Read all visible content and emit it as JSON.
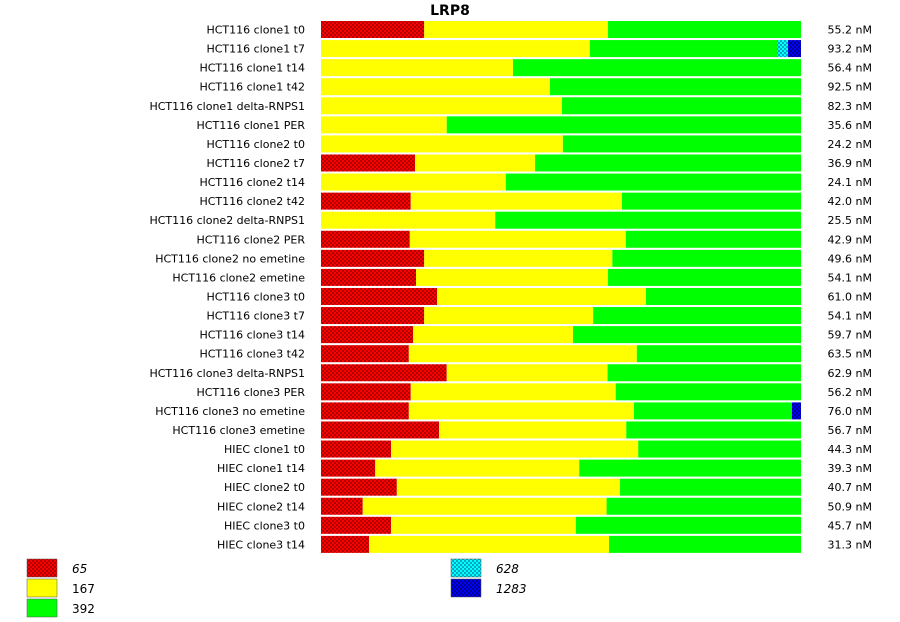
{
  "chart_data": {
    "type": "bar",
    "orientation": "horizontal",
    "stacked": true,
    "normalized": true,
    "title": "LRP8",
    "categories": [
      "HCT116 clone1 t0",
      "HCT116 clone1 t7",
      "HCT116 clone1 t14",
      "HCT116 clone1 t42",
      "HCT116 clone1 delta-RNPS1",
      "HCT116 clone1 PER",
      "HCT116 clone2 t0",
      "HCT116 clone2 t7",
      "HCT116 clone2 t14",
      "HCT116 clone2 t42",
      "HCT116 clone2 delta-RNPS1",
      "HCT116 clone2 PER",
      "HCT116 clone2 no emetine",
      "HCT116 clone2 emetine",
      "HCT116 clone3 t0",
      "HCT116 clone3 t7",
      "HCT116 clone3 t14",
      "HCT116 clone3 t42",
      "HCT116 clone3 delta-RNPS1",
      "HCT116 clone3 PER",
      "HCT116 clone3 no emetine",
      "HCT116 clone3 emetine",
      "HIEC clone1 t0",
      "HIEC clone1 t14",
      "HIEC clone2 t0",
      "HIEC clone2 t14",
      "HIEC clone3 t0",
      "HIEC clone3 t14"
    ],
    "totals": [
      "55.2 nM",
      "93.2 nM",
      "56.4 nM",
      "92.5 nM",
      "82.3 nM",
      "35.6 nM",
      "24.2 nM",
      "36.9 nM",
      "24.1 nM",
      "42.0 nM",
      "25.5 nM",
      "42.9 nM",
      "49.6 nM",
      "54.1 nM",
      "61.0 nM",
      "54.1 nM",
      "59.7 nM",
      "63.5 nM",
      "62.9 nM",
      "56.2 nM",
      "76.0 nM",
      "56.7 nM",
      "44.3 nM",
      "39.3 nM",
      "40.7 nM",
      "50.9 nM",
      "45.7 nM",
      "31.3 nM"
    ],
    "series": [
      {
        "name": "65",
        "color": "#ff0000",
        "pattern": "checker",
        "values": [
          0.215,
          0,
          0,
          0,
          0,
          0,
          0,
          0.196,
          0,
          0.187,
          0,
          0.185,
          0.215,
          0.198,
          0.242,
          0.215,
          0.192,
          0.183,
          0.262,
          0.187,
          0.183,
          0.246,
          0.146,
          0.113,
          0.158,
          0.087,
          0.146,
          0.1
        ]
      },
      {
        "name": "167",
        "color": "#ffff00",
        "pattern": "solid",
        "values": [
          0.383,
          0.56,
          0.4,
          0.477,
          0.502,
          0.262,
          0.504,
          0.25,
          0.385,
          0.44,
          0.363,
          0.45,
          0.392,
          0.4,
          0.435,
          0.352,
          0.333,
          0.475,
          0.335,
          0.427,
          0.469,
          0.39,
          0.515,
          0.425,
          0.465,
          0.508,
          0.385,
          0.5
        ]
      },
      {
        "name": "392",
        "color": "#00ff00",
        "pattern": "solid",
        "values": [
          0.402,
          0.39,
          0.6,
          0.523,
          0.498,
          0.738,
          0.496,
          0.554,
          0.615,
          0.373,
          0.637,
          0.365,
          0.393,
          0.402,
          0.323,
          0.433,
          0.475,
          0.342,
          0.403,
          0.386,
          0.329,
          0.364,
          0.339,
          0.462,
          0.377,
          0.405,
          0.469,
          0.4
        ]
      },
      {
        "name": "628",
        "color": "#00ffff",
        "pattern": "checker",
        "values": [
          0,
          0.023,
          0,
          0,
          0,
          0,
          0,
          0,
          0,
          0,
          0,
          0,
          0,
          0,
          0,
          0,
          0,
          0,
          0,
          0,
          0,
          0,
          0,
          0,
          0,
          0,
          0,
          0
        ]
      },
      {
        "name": "1283",
        "color": "#0000ff",
        "pattern": "checker",
        "values": [
          0,
          0.027,
          0,
          0,
          0,
          0,
          0,
          0,
          0,
          0,
          0,
          0,
          0,
          0,
          0,
          0,
          0,
          0,
          0,
          0,
          0.019,
          0,
          0,
          0,
          0,
          0,
          0,
          0
        ]
      }
    ],
    "legend": [
      {
        "label": "65",
        "italic": true,
        "series": 0
      },
      {
        "label": "167",
        "italic": false,
        "series": 1
      },
      {
        "label": "392",
        "italic": false,
        "series": 2
      },
      {
        "label": "628",
        "italic": true,
        "series": 3
      },
      {
        "label": "1283",
        "italic": true,
        "series": 4
      }
    ],
    "xlim": [
      0,
      1
    ],
    "grid": false,
    "legend_position": "bottom"
  }
}
